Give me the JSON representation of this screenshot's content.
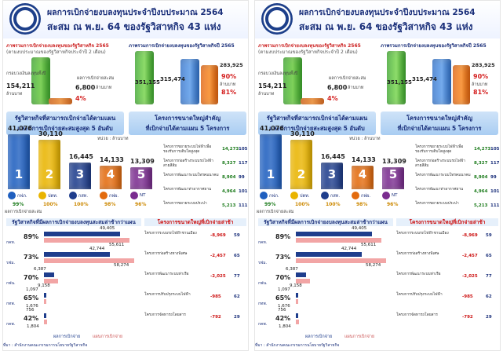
{
  "header": {
    "line1": "ผลการเบิกจ่ายงบลงทุนประจำปีงบประมาณ 2564",
    "line2": "สะสม ณ พ.ย. 64 ของรัฐวิสาหกิจ 43 แห่ง"
  },
  "top_left": {
    "title1": "ภาพรวมการเบิกจ่ายงบลงทุนของรัฐวิสาหกิจ 2565",
    "title2": "(ตามงบประมาณของรัฐวิสาหกิจประจำปี 2 เดือน)",
    "cyl_left_label": "กรอบวงเงินลงทุนทั้งปี",
    "cyl_left_value": "154,211",
    "cyl_left_unit": "ล้านบาท",
    "cyl_right_label": "ผลการเบิกจ่ายสะสม",
    "cyl_right_value": "6,800",
    "cyl_right_unit": "ล้านบาท",
    "cyl_right_pct": "4%",
    "cyl_right_pct_note": "คิดเป็นสัดส่วน"
  },
  "top_right": {
    "title": "ภาพรวมการเบิกจ่ายงบลงทุนของรัฐวิสาหกิจปี 2565",
    "cyl_a_value": "351,155",
    "cyl_b_value": "315,474",
    "cyl_c_value": "283,925",
    "cyl_c_pct": "90%",
    "cyl_d_pct": "81%",
    "unit": "ล้านบาท"
  },
  "bands": {
    "left": "รัฐวิสาหกิจที่สามารถเบิกจ่ายได้ตามแผน\nและมีการเบิกจ่ายสะสมสูงสุด 5 อันดับ",
    "right": "โครงการขนาดใหญ่สำคัญ\nที่เบิกจ่ายได้ตามแผน 5 โครงการ"
  },
  "unit_label": "หน่วย : ล้านบาท",
  "chart_data": {
    "type": "bar",
    "categories": [
      "กฟภ.",
      "ปตท.",
      "กสท.",
      "กฟผ.",
      "NT"
    ],
    "values": [
      41076,
      30110,
      16445,
      14133,
      13309
    ],
    "ranks": [
      "1",
      "2",
      "3",
      "4",
      "5"
    ],
    "percent_labels": [
      "99%",
      "100%",
      "100%",
      "98%",
      "96%"
    ],
    "colors": [
      "#1f5fbf",
      "#e9b400",
      "#1e3d8c",
      "#e36b0e",
      "#7a2c8f"
    ],
    "ylim": [
      0,
      45000
    ]
  },
  "left_caption": "ผลการเบิกจ่ายสะสม",
  "projects": [
    {
      "text": "โครงการขยายระบบไฟฟ้าเพื่อรองรับการเติบโตสูงสุด",
      "value": "14,273",
      "count": "105"
    },
    {
      "text": "โครงการก่อสร้างระบบรถไฟฟ้าสายสีส้ม",
      "value": "8,327",
      "count": "117"
    },
    {
      "text": "โครงการพัฒนาระบบโทรคมนาคม",
      "value": "8,904",
      "count": "99"
    },
    {
      "text": "โครงการพัฒนาท่าอากาศยาน",
      "value": "4,964",
      "count": "101"
    },
    {
      "text": "โครงการขยายระบบประปา",
      "value": "5,213",
      "count": "111"
    }
  ],
  "bottom": {
    "banner_left": "รัฐวิสาหกิจที่มีผลการเบิกจ่ายงบลงทุนสะสมล่าช้ากว่าแผน",
    "banner_right": "โครงการขนาดใหญ่ที่เบิกจ่ายล่าช้า",
    "rows": [
      {
        "name": "กคท.",
        "pct": "89%",
        "plan": "49,405",
        "actual": "55,611",
        "plan_n": 49405,
        "actual_n": 55611
      },
      {
        "name": "รฟม.",
        "pct": "73%",
        "plan": "42,744",
        "actual": "58,274",
        "plan_n": 42744,
        "actual_n": 58274
      },
      {
        "name": "กฟน.",
        "pct": "70%",
        "plan": "6,387",
        "actual": "9,158",
        "plan_n": 6387,
        "actual_n": 9158
      },
      {
        "name": "กทพ.",
        "pct": "65%",
        "plan": "1,097",
        "actual": "1,676",
        "plan_n": 1097,
        "actual_n": 1676
      },
      {
        "name": "กคพ.",
        "pct": "42%",
        "plan": "756",
        "actual": "1,804",
        "plan_n": 756,
        "actual_n": 1804
      }
    ],
    "legend_plan": "ผลการเบิกจ่าย",
    "legend_actual": "แผนการเบิกจ่าย",
    "delayed": [
      {
        "text": "โครงการระบบรถไฟฟ้าชานเมือง",
        "value": "-8,969",
        "count": "59"
      },
      {
        "text": "โครงการก่อสร้างทางพิเศษ",
        "value": "-2,457",
        "count": "65"
      },
      {
        "text": "โครงการพัฒนาระบบท่าเรือ",
        "value": "-2,025",
        "count": "77"
      },
      {
        "text": "โครงการปรับปรุงระบบไฟฟ้า",
        "value": "-985",
        "count": "62"
      },
      {
        "text": "โครงการจัดหารถโดยสาร",
        "value": "-792",
        "count": "29"
      }
    ]
  },
  "footer": "ที่มา : สำนักงานคณะกรรมการนโยบายรัฐวิสาหกิจ"
}
